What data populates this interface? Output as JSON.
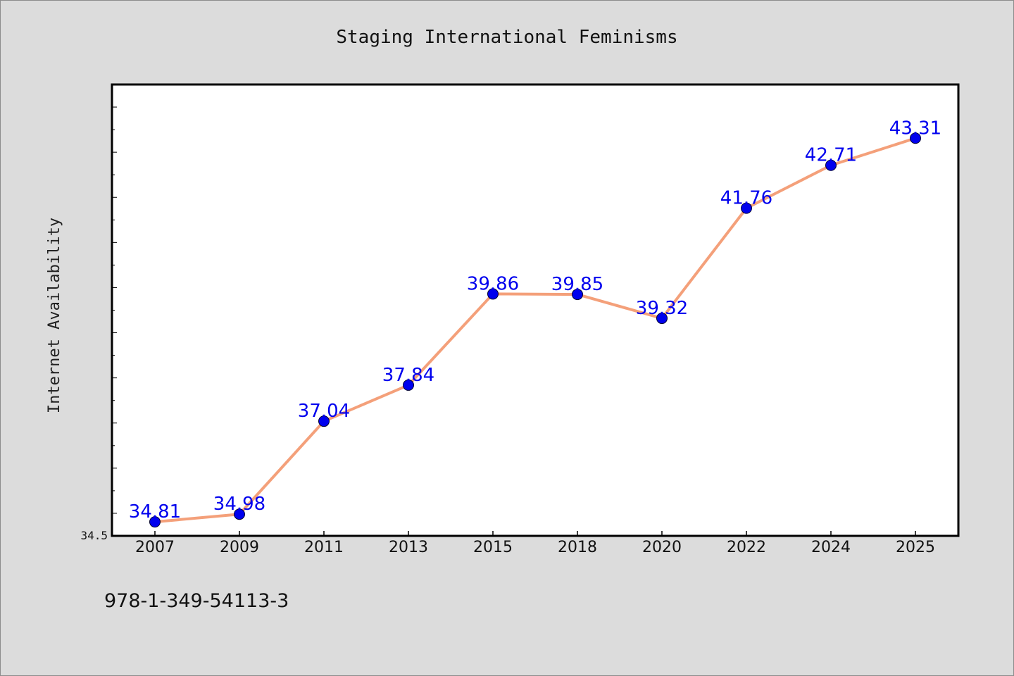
{
  "chart_data": {
    "type": "line",
    "title": "Staging International Feminisms",
    "xlabel": "",
    "ylabel": "Internet Availability",
    "categories": [
      "2007",
      "2009",
      "2011",
      "2013",
      "2015",
      "2018",
      "2020",
      "2022",
      "2024",
      "2025"
    ],
    "series": [
      {
        "values": [
          34.81,
          34.98,
          37.04,
          37.84,
          39.86,
          39.85,
          39.32,
          41.76,
          42.71,
          43.31
        ],
        "data_labels": [
          "34.81",
          "34.98",
          "37.04",
          "37.84",
          "39.86",
          "39.85",
          "39.32",
          "41.76",
          "42.71",
          "43.31"
        ],
        "line_color": "#f4a07a",
        "marker_color": "#0000ee"
      }
    ],
    "y_tick_labels": [
      "34.5"
    ],
    "ylim": [
      34.5,
      44.5
    ],
    "grid": false,
    "legend": "none"
  },
  "footer_text": "978-1-349-54113-3"
}
